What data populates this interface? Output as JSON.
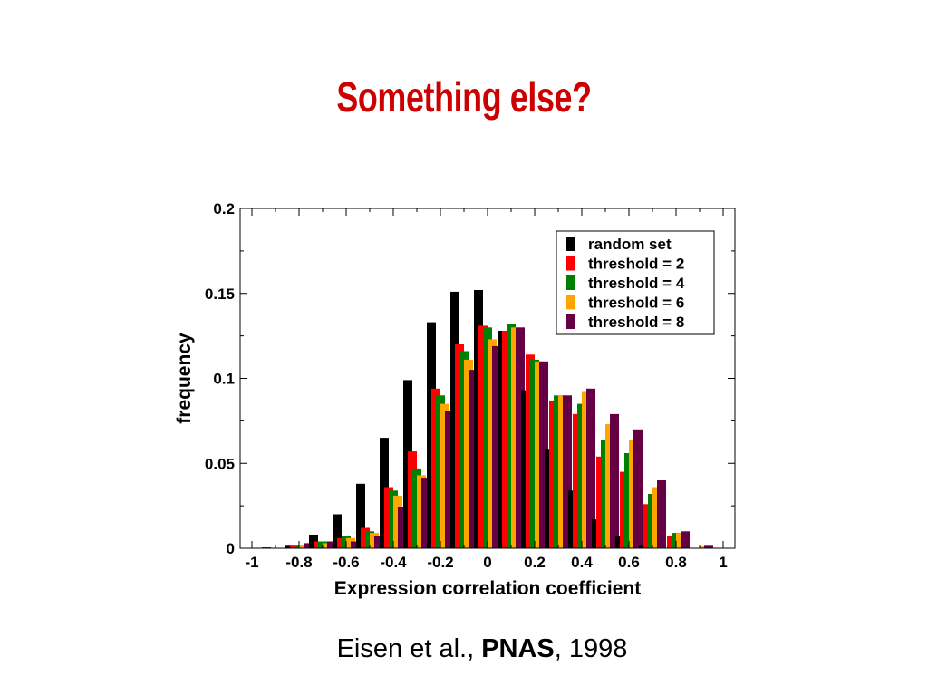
{
  "slide": {
    "title": "Something else?",
    "citation_authors": "Eisen et al., ",
    "citation_journal": "PNAS",
    "citation_year": ", 1998"
  },
  "chart_data": {
    "type": "bar",
    "title": "",
    "xlabel": "Expression correlation coefficient",
    "ylabel": "frequency",
    "xlim": [
      -1.05,
      1.05
    ],
    "ylim": [
      0,
      0.2
    ],
    "x_ticks": [
      -1,
      -0.8,
      -0.6,
      -0.4,
      -0.2,
      0,
      0.2,
      0.4,
      0.6,
      0.8,
      1
    ],
    "x_tick_labels": [
      "-1",
      "-0.8",
      "-0.6",
      "-0.4",
      "-0.2",
      "0",
      "0.2",
      "0.4",
      "0.6",
      "0.8",
      "1"
    ],
    "y_ticks": [
      0,
      0.05,
      0.1,
      0.15,
      0.2
    ],
    "y_tick_labels": [
      "0",
      "0.05",
      "0.1",
      "0.15",
      "0.2"
    ],
    "legend_position": "top-right",
    "grid": false,
    "categories": [
      -1,
      -0.9,
      -0.8,
      -0.7,
      -0.6,
      -0.5,
      -0.4,
      -0.3,
      -0.2,
      -0.1,
      0,
      0.1,
      0.2,
      0.3,
      0.4,
      0.5,
      0.6,
      0.7,
      0.8,
      0.9,
      1
    ],
    "series": [
      {
        "name": "random set",
        "color": "#000000",
        "values": [
          0,
          0.0005,
          0.002,
          0.008,
          0.02,
          0.038,
          0.065,
          0.099,
          0.133,
          0.151,
          0.152,
          0.128,
          0.093,
          0.058,
          0.034,
          0.017,
          0.007,
          0.002,
          0,
          0,
          0
        ]
      },
      {
        "name": "threshold = 2",
        "color": "#ff0000",
        "values": [
          0,
          0,
          0.002,
          0.004,
          0.006,
          0.012,
          0.036,
          0.057,
          0.094,
          0.12,
          0.131,
          0.128,
          0.114,
          0.087,
          0.079,
          0.054,
          0.045,
          0.026,
          0.007,
          0,
          0
        ]
      },
      {
        "name": "threshold = 4",
        "color": "#008000",
        "values": [
          0,
          0,
          0.002,
          0.004,
          0.007,
          0.01,
          0.034,
          0.047,
          0.09,
          0.116,
          0.13,
          0.132,
          0.111,
          0.09,
          0.085,
          0.064,
          0.056,
          0.032,
          0.009,
          0,
          0
        ]
      },
      {
        "name": "threshold = 6",
        "color": "#ffa500",
        "values": [
          0,
          0,
          0.002,
          0.003,
          0.006,
          0.009,
          0.031,
          0.043,
          0.085,
          0.111,
          0.123,
          0.13,
          0.11,
          0.09,
          0.092,
          0.073,
          0.064,
          0.036,
          0.009,
          0.001,
          0
        ]
      },
      {
        "name": "threshold = 8",
        "color": "#660044",
        "values": [
          0,
          0,
          0.003,
          0.004,
          0.004,
          0.007,
          0.024,
          0.041,
          0.081,
          0.105,
          0.119,
          0.13,
          0.11,
          0.09,
          0.094,
          0.079,
          0.07,
          0.04,
          0.01,
          0.002,
          0
        ]
      }
    ]
  }
}
